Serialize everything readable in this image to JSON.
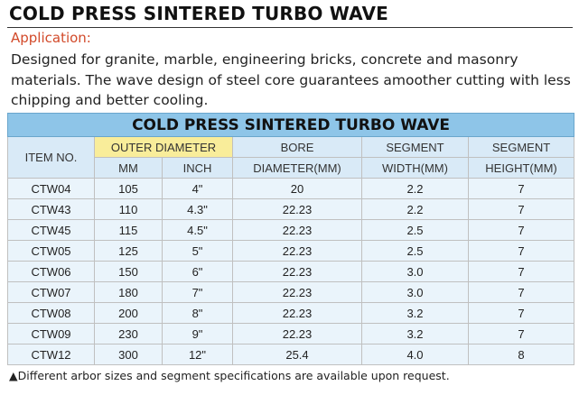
{
  "title": "COLD PRESS SINTERED TURBO WAVE",
  "application_label": "Application:",
  "description": "Designed for granite, marble, engineering bricks, concrete and masonry materials. The wave design of steel core guarantees amoother cutting with less chipping and better cooling.",
  "table": {
    "banner": "COLD PRESS SINTERED TURBO WAVE",
    "header": {
      "item_no": "ITEM NO.",
      "outer_diameter": "OUTER DIAMETER",
      "mm": "MM",
      "inch": "INCH",
      "bore_top": "BORE",
      "bore_bottom": "DIAMETER(MM)",
      "seg_width_top": "SEGMENT",
      "seg_width_bottom": "WIDTH(MM)",
      "seg_height_top": "SEGMENT",
      "seg_height_bottom": "HEIGHT(MM)"
    },
    "rows": [
      [
        "CTW04",
        "105",
        "4\"",
        "20",
        "2.2",
        "7"
      ],
      [
        "CTW43",
        "110",
        "4.3\"",
        "22.23",
        "2.2",
        "7"
      ],
      [
        "CTW45",
        "115",
        "4.5\"",
        "22.23",
        "2.5",
        "7"
      ],
      [
        "CTW05",
        "125",
        "5\"",
        "22.23",
        "2.5",
        "7"
      ],
      [
        "CTW06",
        "150",
        "6\"",
        "22.23",
        "3.0",
        "7"
      ],
      [
        "CTW07",
        "180",
        "7\"",
        "22.23",
        "3.0",
        "7"
      ],
      [
        "CTW08",
        "200",
        "8\"",
        "22.23",
        "3.2",
        "7"
      ],
      [
        "CTW09",
        "230",
        "9\"",
        "22.23",
        "3.2",
        "7"
      ],
      [
        "CTW12",
        "300",
        "12\"",
        "25.4",
        "4.0",
        "8"
      ]
    ]
  },
  "footnote": "▲Different arbor sizes and segment specifications are available upon request."
}
